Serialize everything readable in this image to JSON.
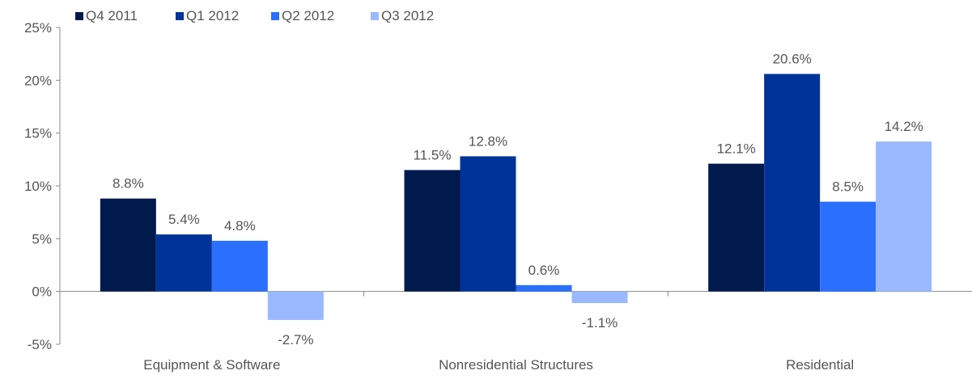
{
  "chart_data": {
    "type": "bar",
    "categories": [
      "Equipment & Software",
      "Nonresidential Structures",
      "Residential"
    ],
    "series": [
      {
        "name": "Q4 2011",
        "values": [
          8.8,
          11.5,
          12.1
        ],
        "color": "#001a4d",
        "labels": [
          "8.8%",
          "11.5%",
          "12.1%"
        ]
      },
      {
        "name": "Q1 2012",
        "values": [
          5.4,
          12.8,
          20.6
        ],
        "color": "#003399",
        "labels": [
          "5.4%",
          "12.8%",
          "20.6%"
        ]
      },
      {
        "name": "Q2 2012",
        "values": [
          4.8,
          0.6,
          8.5
        ],
        "color": "#2a6fff",
        "labels": [
          "4.8%",
          "0.6%",
          "8.5%"
        ]
      },
      {
        "name": "Q3 2012",
        "values": [
          -2.7,
          -1.1,
          14.2
        ],
        "color": "#99b8ff",
        "labels": [
          "-2.7%",
          "-1.1%",
          "14.2%"
        ]
      }
    ],
    "ylim": [
      -5,
      25
    ],
    "yticks": [
      -5,
      0,
      5,
      10,
      15,
      20,
      25
    ],
    "ytick_labels": [
      "-5%",
      "0%",
      "5%",
      "10%",
      "15%",
      "20%",
      "25%"
    ],
    "legend_position": "top-left",
    "grid": false,
    "title": "",
    "xlabel": "",
    "ylabel": ""
  }
}
